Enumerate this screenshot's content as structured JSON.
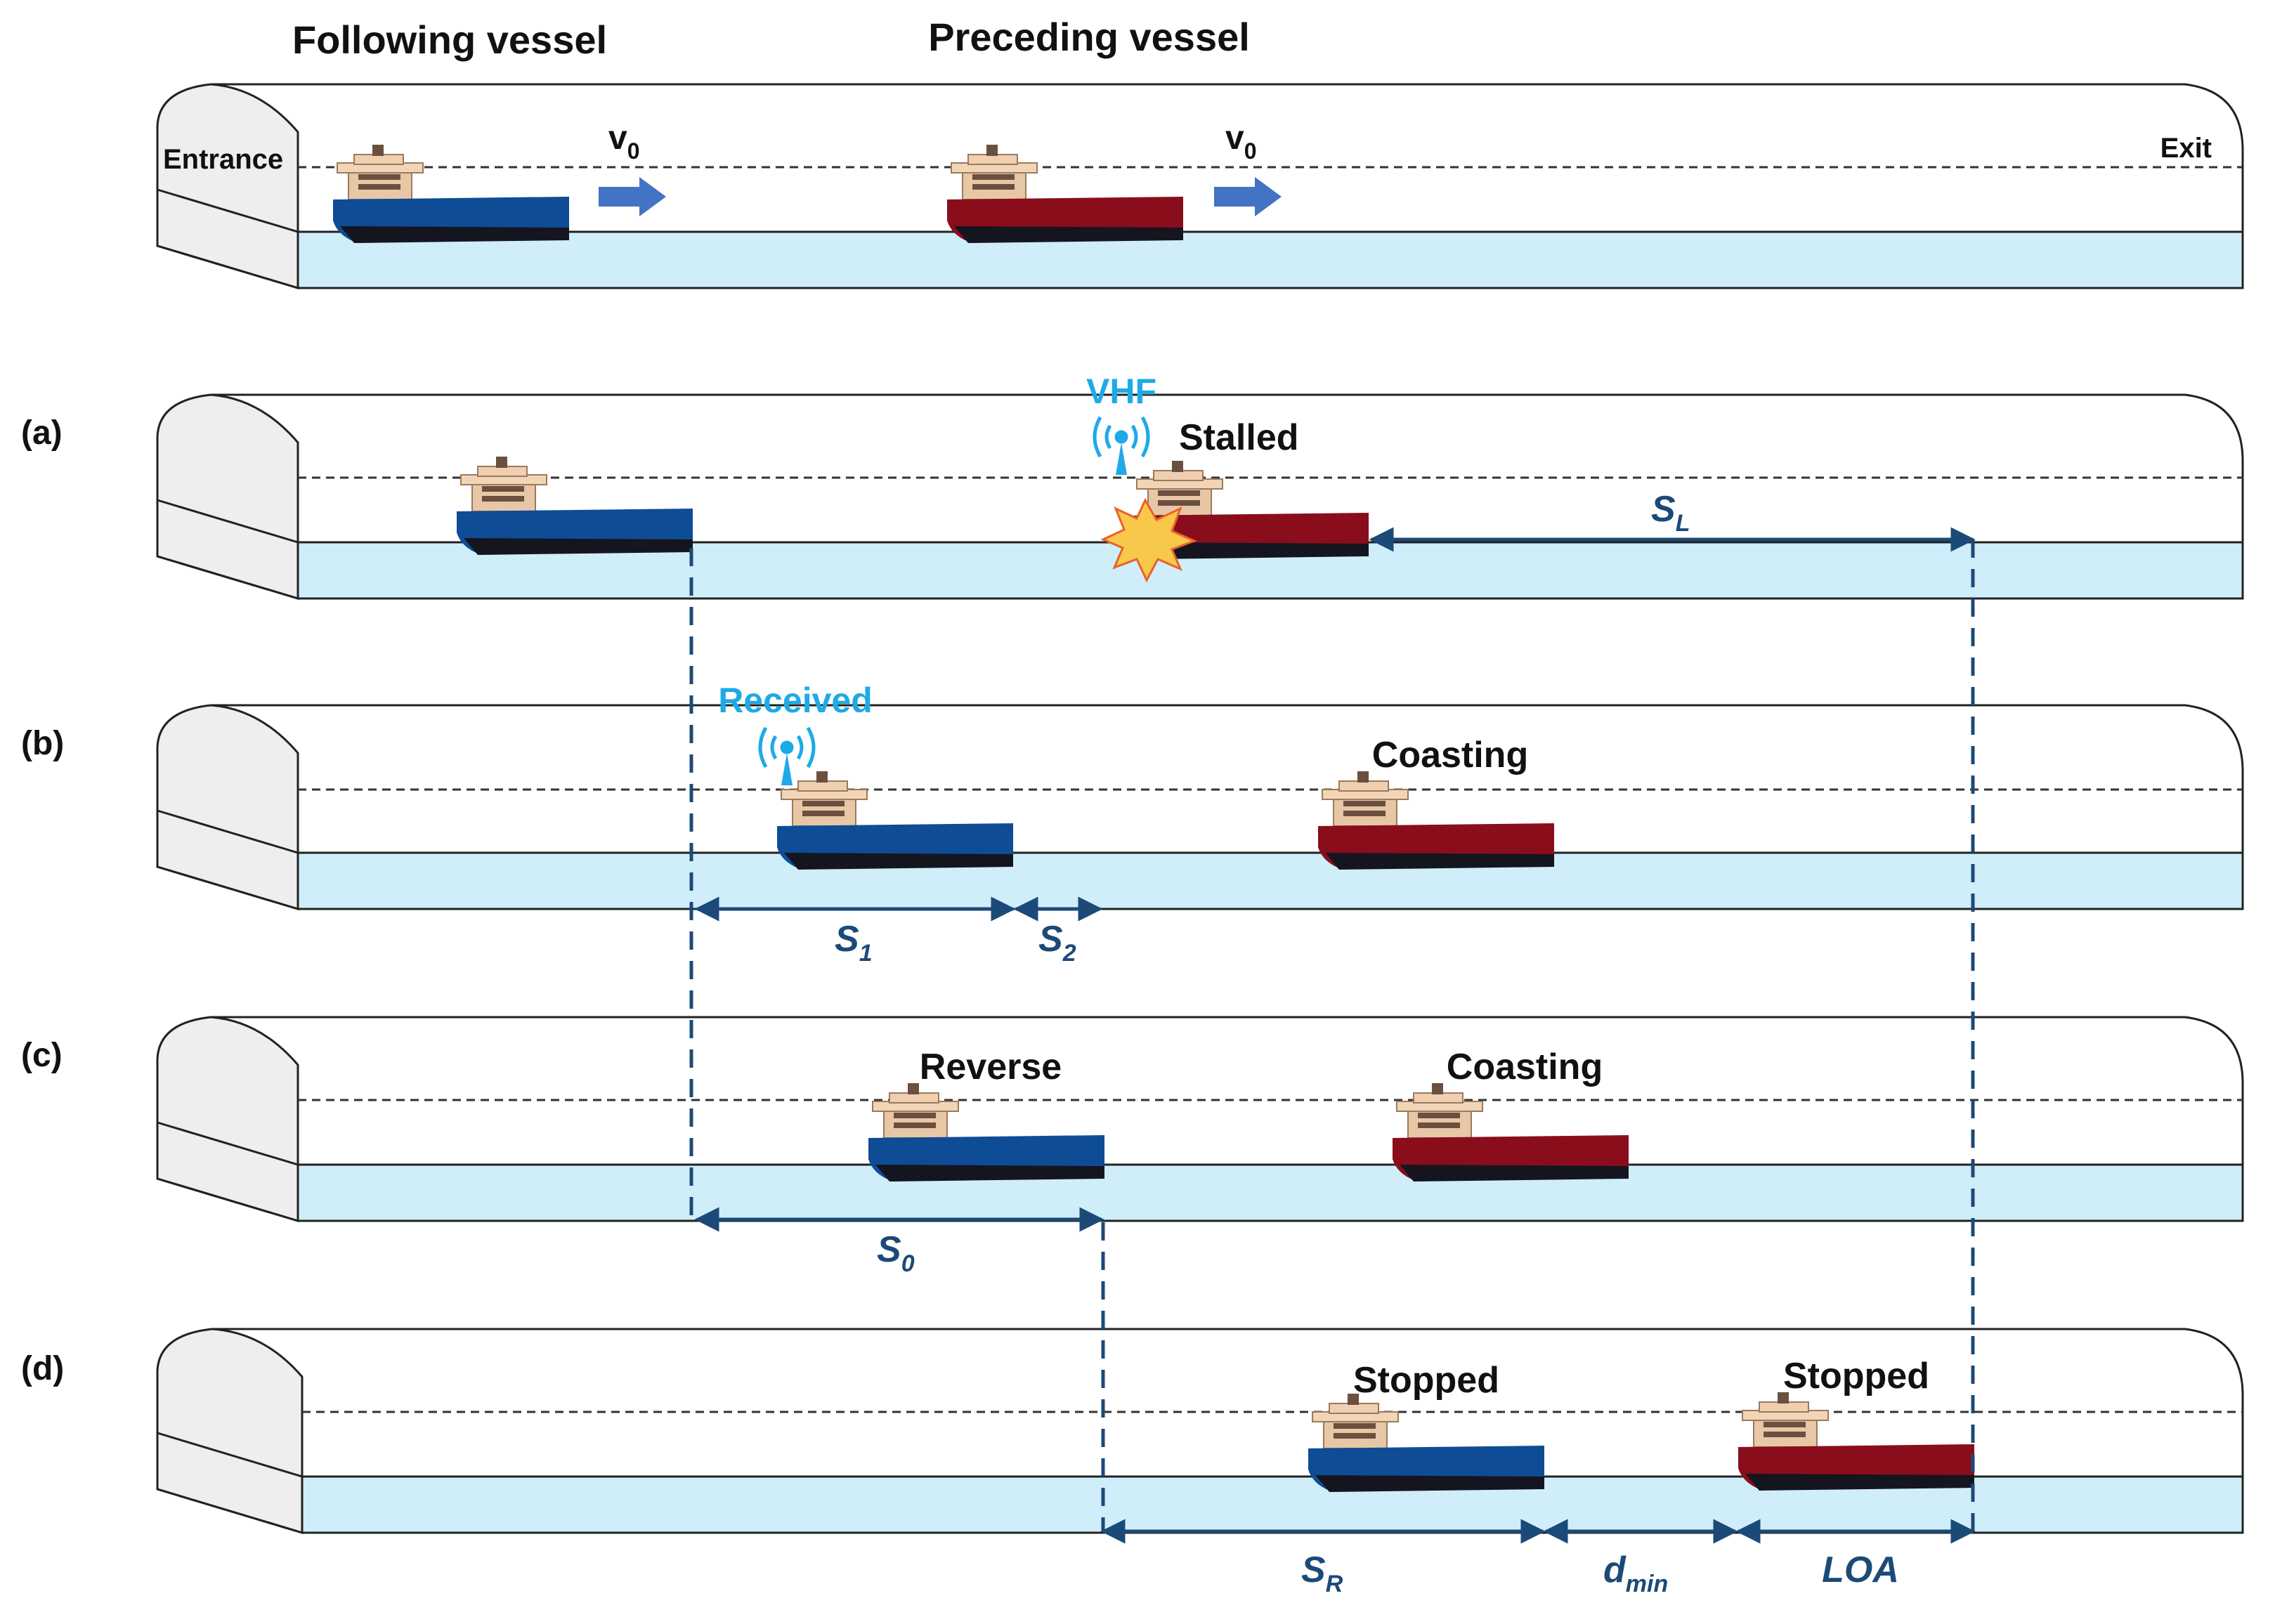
{
  "header": {
    "following_vessel": "Following vessel",
    "preceding_vessel": "Preceding vessel",
    "entrance": "Entrance",
    "exit": "Exit",
    "speed_symbol": "v",
    "speed_subscript": "0"
  },
  "panels": {
    "a": {
      "tag": "(a)",
      "signal": "VHF",
      "preceding_state": "Stalled",
      "distance_symbol": "S",
      "distance_subscript": "L"
    },
    "b": {
      "tag": "(b)",
      "signal": "Received",
      "preceding_state": "Coasting",
      "distance1_symbol": "S",
      "distance1_subscript": "1",
      "distance2_symbol": "S",
      "distance2_subscript": "2"
    },
    "c": {
      "tag": "(c)",
      "following_state": "Reverse",
      "preceding_state": "Coasting",
      "distance_symbol": "S",
      "distance_subscript": "0"
    },
    "d": {
      "tag": "(d)",
      "following_state": "Stopped",
      "preceding_state": "Stopped",
      "sr_symbol": "S",
      "sr_subscript": "R",
      "dmin_symbol": "d",
      "dmin_subscript": "min",
      "loa": "LOA"
    }
  },
  "colors": {
    "following_hull": "#0e4c96",
    "preceding_hull": "#8a0d1c",
    "water": "#cfeefa",
    "tunnel_face": "#eeeeee",
    "signal": "#1eaae6",
    "dimension": "#1c4a78",
    "arrow": "#4472c4"
  }
}
